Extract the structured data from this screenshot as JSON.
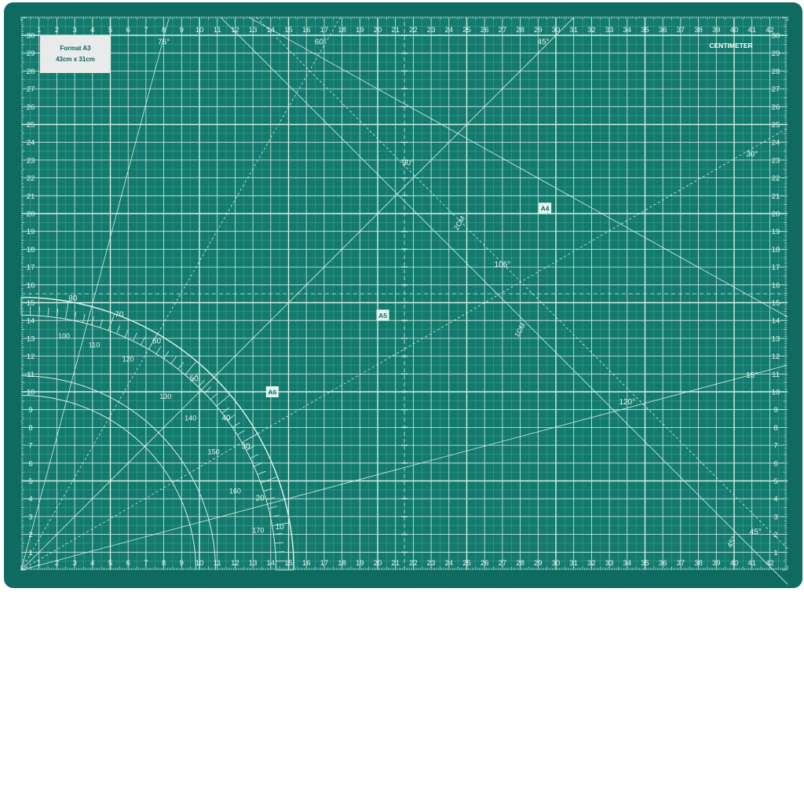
{
  "mat": {
    "format_title": "Format A3",
    "format_size": "43cm x 31cm",
    "unit_label": "CENTIMETER",
    "colors": {
      "mat": "#137a6e",
      "frame": "#0f6b61",
      "line": "#d8efe9",
      "page": "#ffffff"
    },
    "x_ticks": [
      "1",
      "2",
      "3",
      "4",
      "5",
      "6",
      "7",
      "8",
      "9",
      "10",
      "11",
      "12",
      "13",
      "14",
      "15",
      "16",
      "17",
      "18",
      "19",
      "20",
      "21",
      "22",
      "23",
      "24",
      "25",
      "26",
      "27",
      "28",
      "29",
      "30",
      "31",
      "32",
      "33",
      "34",
      "35",
      "36",
      "37",
      "38",
      "39",
      "40",
      "41",
      "42"
    ],
    "y_ticks": [
      "1",
      "2",
      "3",
      "4",
      "5",
      "6",
      "7",
      "8",
      "9",
      "10",
      "11",
      "12",
      "13",
      "14",
      "15",
      "16",
      "17",
      "18",
      "19",
      "20",
      "21",
      "22",
      "23",
      "24",
      "25",
      "26",
      "27",
      "28",
      "29",
      "30"
    ],
    "angle_labels": [
      "75°",
      "60°",
      "45°",
      "30°",
      "15°",
      "90°",
      "105°",
      "120°",
      "45°",
      "45°"
    ],
    "offset_labels": [
      "2CM",
      "1CM"
    ],
    "triangle_markers": [
      "A4",
      "A5",
      "A6"
    ],
    "protractor_outer": [
      "80",
      "70",
      "60",
      "50",
      "40",
      "30",
      "20",
      "10"
    ],
    "protractor_inner": [
      "100",
      "110",
      "120",
      "130",
      "140",
      "150",
      "160",
      "170"
    ]
  }
}
